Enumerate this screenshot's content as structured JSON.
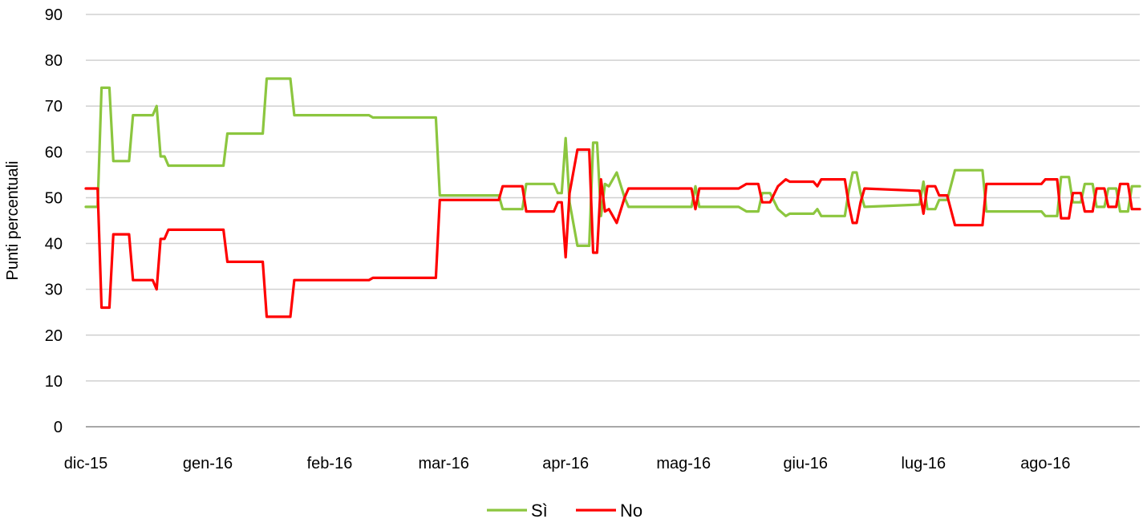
{
  "chart_data": {
    "type": "line",
    "title": "",
    "ylabel": "Punti percentuali",
    "xlabel": "",
    "ylim": [
      0,
      90
    ],
    "yticks": [
      0,
      10,
      20,
      30,
      40,
      50,
      60,
      70,
      80,
      90
    ],
    "grid": "horizontal",
    "legend_position": "bottom",
    "x_start": "2015-12-01",
    "x_end": "2016-08-25",
    "x_ticks": [
      {
        "label": "dic-15",
        "date": "2015-12-01"
      },
      {
        "label": "gen-16",
        "date": "2016-01-01"
      },
      {
        "label": "feb-16",
        "date": "2016-02-01"
      },
      {
        "label": "mar-16",
        "date": "2016-03-01"
      },
      {
        "label": "apr-16",
        "date": "2016-04-01"
      },
      {
        "label": "mag-16",
        "date": "2016-05-01"
      },
      {
        "label": "giu-16",
        "date": "2016-06-01"
      },
      {
        "label": "lug-16",
        "date": "2016-07-01"
      },
      {
        "label": "ago-16",
        "date": "2016-08-01"
      }
    ],
    "series": [
      {
        "name": "Sì",
        "color": "#8cc63f",
        "points": [
          [
            "2015-12-01",
            48
          ],
          [
            "2015-12-04",
            48
          ],
          [
            "2015-12-05",
            74
          ],
          [
            "2015-12-07",
            74
          ],
          [
            "2015-12-08",
            58
          ],
          [
            "2015-12-12",
            58
          ],
          [
            "2015-12-13",
            68
          ],
          [
            "2015-12-18",
            68
          ],
          [
            "2015-12-19",
            70
          ],
          [
            "2015-12-20",
            59
          ],
          [
            "2015-12-21",
            59
          ],
          [
            "2015-12-22",
            57
          ],
          [
            "2016-01-05",
            57
          ],
          [
            "2016-01-06",
            64
          ],
          [
            "2016-01-15",
            64
          ],
          [
            "2016-01-16",
            76
          ],
          [
            "2016-01-22",
            76
          ],
          [
            "2016-01-23",
            68
          ],
          [
            "2016-02-11",
            68
          ],
          [
            "2016-02-12",
            67.5
          ],
          [
            "2016-02-28",
            67.5
          ],
          [
            "2016-02-29",
            50.5
          ],
          [
            "2016-03-15",
            50.5
          ],
          [
            "2016-03-16",
            47.5
          ],
          [
            "2016-03-21",
            47.5
          ],
          [
            "2016-03-22",
            53
          ],
          [
            "2016-03-29",
            53
          ],
          [
            "2016-03-30",
            51
          ],
          [
            "2016-03-31",
            51
          ],
          [
            "2016-04-01",
            63
          ],
          [
            "2016-04-02",
            49
          ],
          [
            "2016-04-04",
            39.5
          ],
          [
            "2016-04-07",
            39.5
          ],
          [
            "2016-04-08",
            62
          ],
          [
            "2016-04-09",
            62
          ],
          [
            "2016-04-10",
            46
          ],
          [
            "2016-04-11",
            53
          ],
          [
            "2016-04-12",
            52.5
          ],
          [
            "2016-04-14",
            55.5
          ],
          [
            "2016-04-16",
            50
          ],
          [
            "2016-04-17",
            48
          ],
          [
            "2016-05-03",
            48
          ],
          [
            "2016-05-04",
            52.5
          ],
          [
            "2016-05-05",
            48
          ],
          [
            "2016-05-15",
            48
          ],
          [
            "2016-05-17",
            47
          ],
          [
            "2016-05-20",
            47
          ],
          [
            "2016-05-21",
            51
          ],
          [
            "2016-05-23",
            51
          ],
          [
            "2016-05-25",
            47.5
          ],
          [
            "2016-05-27",
            46
          ],
          [
            "2016-05-28",
            46.5
          ],
          [
            "2016-06-03",
            46.5
          ],
          [
            "2016-06-04",
            47.5
          ],
          [
            "2016-06-05",
            46
          ],
          [
            "2016-06-11",
            46
          ],
          [
            "2016-06-12",
            51.5
          ],
          [
            "2016-06-13",
            55.5
          ],
          [
            "2016-06-14",
            55.5
          ],
          [
            "2016-06-15",
            51
          ],
          [
            "2016-06-16",
            48
          ],
          [
            "2016-06-30",
            48.5
          ],
          [
            "2016-07-01",
            53.5
          ],
          [
            "2016-07-02",
            47.5
          ],
          [
            "2016-07-04",
            47.5
          ],
          [
            "2016-07-05",
            49.5
          ],
          [
            "2016-07-07",
            49.5
          ],
          [
            "2016-07-09",
            56
          ],
          [
            "2016-07-16",
            56
          ],
          [
            "2016-07-17",
            47
          ],
          [
            "2016-07-31",
            47
          ],
          [
            "2016-08-01",
            46
          ],
          [
            "2016-08-04",
            46
          ],
          [
            "2016-08-05",
            54.5
          ],
          [
            "2016-08-07",
            54.5
          ],
          [
            "2016-08-08",
            49
          ],
          [
            "2016-08-10",
            49
          ],
          [
            "2016-08-11",
            53
          ],
          [
            "2016-08-13",
            53
          ],
          [
            "2016-08-14",
            48
          ],
          [
            "2016-08-16",
            48
          ],
          [
            "2016-08-17",
            52
          ],
          [
            "2016-08-19",
            52
          ],
          [
            "2016-08-20",
            47
          ],
          [
            "2016-08-22",
            47
          ],
          [
            "2016-08-23",
            52.5
          ],
          [
            "2016-08-25",
            52.5
          ]
        ]
      },
      {
        "name": "No",
        "color": "#ff0000",
        "points": [
          [
            "2015-12-01",
            52
          ],
          [
            "2015-12-04",
            52
          ],
          [
            "2015-12-05",
            26
          ],
          [
            "2015-12-07",
            26
          ],
          [
            "2015-12-08",
            42
          ],
          [
            "2015-12-12",
            42
          ],
          [
            "2015-12-13",
            32
          ],
          [
            "2015-12-18",
            32
          ],
          [
            "2015-12-19",
            30
          ],
          [
            "2015-12-20",
            41
          ],
          [
            "2015-12-21",
            41
          ],
          [
            "2015-12-22",
            43
          ],
          [
            "2016-01-05",
            43
          ],
          [
            "2016-01-06",
            36
          ],
          [
            "2016-01-15",
            36
          ],
          [
            "2016-01-16",
            24
          ],
          [
            "2016-01-22",
            24
          ],
          [
            "2016-01-23",
            32
          ],
          [
            "2016-02-11",
            32
          ],
          [
            "2016-02-12",
            32.5
          ],
          [
            "2016-02-28",
            32.5
          ],
          [
            "2016-02-29",
            49.5
          ],
          [
            "2016-03-15",
            49.5
          ],
          [
            "2016-03-16",
            52.5
          ],
          [
            "2016-03-21",
            52.5
          ],
          [
            "2016-03-22",
            47
          ],
          [
            "2016-03-29",
            47
          ],
          [
            "2016-03-30",
            49
          ],
          [
            "2016-03-31",
            49
          ],
          [
            "2016-04-01",
            37
          ],
          [
            "2016-04-02",
            51
          ],
          [
            "2016-04-04",
            60.5
          ],
          [
            "2016-04-07",
            60.5
          ],
          [
            "2016-04-08",
            38
          ],
          [
            "2016-04-09",
            38
          ],
          [
            "2016-04-10",
            54
          ],
          [
            "2016-04-11",
            47
          ],
          [
            "2016-04-12",
            47.5
          ],
          [
            "2016-04-14",
            44.5
          ],
          [
            "2016-04-16",
            50
          ],
          [
            "2016-04-17",
            52
          ],
          [
            "2016-05-03",
            52
          ],
          [
            "2016-05-04",
            47.5
          ],
          [
            "2016-05-05",
            52
          ],
          [
            "2016-05-15",
            52
          ],
          [
            "2016-05-17",
            53
          ],
          [
            "2016-05-20",
            53
          ],
          [
            "2016-05-21",
            49
          ],
          [
            "2016-05-23",
            49
          ],
          [
            "2016-05-25",
            52.5
          ],
          [
            "2016-05-27",
            54
          ],
          [
            "2016-05-28",
            53.5
          ],
          [
            "2016-06-03",
            53.5
          ],
          [
            "2016-06-04",
            52.5
          ],
          [
            "2016-06-05",
            54
          ],
          [
            "2016-06-11",
            54
          ],
          [
            "2016-06-12",
            48.5
          ],
          [
            "2016-06-13",
            44.5
          ],
          [
            "2016-06-14",
            44.5
          ],
          [
            "2016-06-15",
            49
          ],
          [
            "2016-06-16",
            52
          ],
          [
            "2016-06-30",
            51.5
          ],
          [
            "2016-07-01",
            46.5
          ],
          [
            "2016-07-02",
            52.5
          ],
          [
            "2016-07-04",
            52.5
          ],
          [
            "2016-07-05",
            50.5
          ],
          [
            "2016-07-07",
            50.5
          ],
          [
            "2016-07-09",
            44
          ],
          [
            "2016-07-16",
            44
          ],
          [
            "2016-07-17",
            53
          ],
          [
            "2016-07-31",
            53
          ],
          [
            "2016-08-01",
            54
          ],
          [
            "2016-08-04",
            54
          ],
          [
            "2016-08-05",
            45.5
          ],
          [
            "2016-08-07",
            45.5
          ],
          [
            "2016-08-08",
            51
          ],
          [
            "2016-08-10",
            51
          ],
          [
            "2016-08-11",
            47
          ],
          [
            "2016-08-13",
            47
          ],
          [
            "2016-08-14",
            52
          ],
          [
            "2016-08-16",
            52
          ],
          [
            "2016-08-17",
            48
          ],
          [
            "2016-08-19",
            48
          ],
          [
            "2016-08-20",
            53
          ],
          [
            "2016-08-22",
            53
          ],
          [
            "2016-08-23",
            47.5
          ],
          [
            "2016-08-25",
            47.5
          ]
        ]
      }
    ]
  }
}
